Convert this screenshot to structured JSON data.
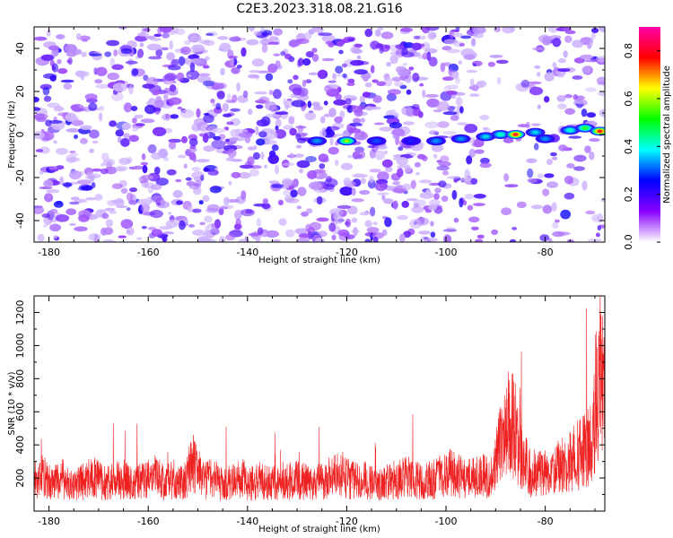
{
  "title": "C2E3.2023.318.08.21.G16",
  "chart_data": [
    {
      "type": "heatmap",
      "name": "spectrogram",
      "xlabel": "Height of straight line (km)",
      "ylabel": "Frequency (Hz)",
      "xlim": [
        -183,
        -68
      ],
      "ylim": [
        -50,
        50
      ],
      "x_ticks": [
        -180,
        -160,
        -140,
        -120,
        -100,
        -80
      ],
      "y_ticks": [
        -40,
        -20,
        0,
        20,
        40
      ],
      "signal_track": [
        {
          "x": -126,
          "y": -3.0,
          "amplitude": 0.3
        },
        {
          "x": -120,
          "y": -3.0,
          "amplitude": 0.55
        },
        {
          "x": -114,
          "y": -3.0,
          "amplitude": 0.25
        },
        {
          "x": -107,
          "y": -3.0,
          "amplitude": 0.22
        },
        {
          "x": -102,
          "y": -3.0,
          "amplitude": 0.3
        },
        {
          "x": -97,
          "y": -2.0,
          "amplitude": 0.3
        },
        {
          "x": -92,
          "y": -1.0,
          "amplitude": 0.35
        },
        {
          "x": -89,
          "y": 0.0,
          "amplitude": 0.4
        },
        {
          "x": -86,
          "y": 0.0,
          "amplitude": 0.8
        },
        {
          "x": -82,
          "y": 1.0,
          "amplitude": 0.35
        },
        {
          "x": -80,
          "y": -2.0,
          "amplitude": 0.3
        },
        {
          "x": -75,
          "y": 2.0,
          "amplitude": 0.4
        },
        {
          "x": -72,
          "y": 3.0,
          "amplitude": 0.5
        },
        {
          "x": -69,
          "y": 1.5,
          "amplitude": 0.8
        }
      ]
    },
    {
      "type": "colorbar",
      "label": "Normalized spectral amplitude",
      "ylim": [
        0,
        0.9
      ],
      "ticks": [
        "0.0",
        "0.2",
        "0.4",
        "0.6",
        "0.8"
      ],
      "colors": [
        "#ffffff",
        "#8800ff",
        "#0000ff",
        "#00ffff",
        "#00ff00",
        "#ffff00",
        "#ff0000",
        "#ff00aa"
      ]
    },
    {
      "type": "line",
      "name": "snr",
      "xlabel": "Height of straight line (km)",
      "ylabel": "SNR (10 * v/v)",
      "xlim": [
        -183,
        -68
      ],
      "ylim": [
        0,
        1300
      ],
      "x_ticks": [
        -180,
        -160,
        -140,
        -120,
        -100,
        -80
      ],
      "y_ticks": [
        200,
        400,
        600,
        800,
        1000,
        1200
      ],
      "color": "#ee2020",
      "series": [
        {
          "x": [
            -183,
            -181,
            -179,
            -177,
            -175,
            -173,
            -171,
            -169,
            -167,
            -165,
            -163,
            -161,
            -159,
            -157,
            -155,
            -153,
            -151,
            -149,
            -147,
            -145,
            -143,
            -141,
            -139,
            -137,
            -135,
            -133,
            -131,
            -129,
            -127,
            -125,
            -123,
            -121,
            -119,
            -117,
            -115,
            -113,
            -111,
            -109,
            -107,
            -105,
            -103,
            -101,
            -99,
            -97,
            -95,
            -93,
            -91,
            -89,
            -87,
            -85,
            -83,
            -81,
            -79,
            -77,
            -75,
            -73,
            -71,
            -70,
            -69,
            -68
          ],
          "y": [
            180,
            230,
            170,
            200,
            160,
            190,
            210,
            170,
            185,
            200,
            160,
            190,
            230,
            180,
            200,
            170,
            300,
            190,
            210,
            160,
            180,
            200,
            170,
            190,
            175,
            160,
            200,
            185,
            170,
            190,
            210,
            230,
            190,
            200,
            175,
            160,
            190,
            200,
            210,
            180,
            195,
            215,
            240,
            210,
            200,
            230,
            190,
            420,
            600,
            380,
            230,
            250,
            210,
            280,
            300,
            360,
            400,
            650,
            900,
            700
          ]
        }
      ]
    }
  ]
}
